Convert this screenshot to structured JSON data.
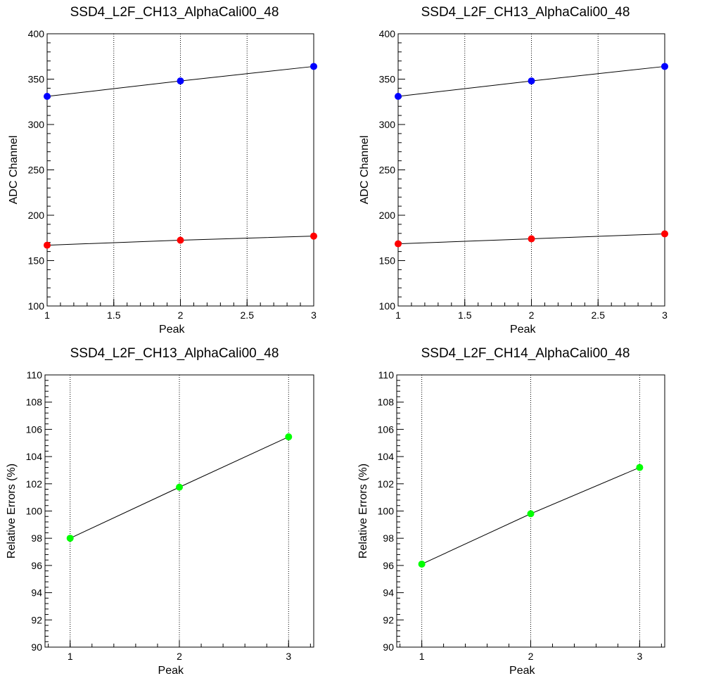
{
  "colors": {
    "series_blue": "#0000ff",
    "series_red": "#ff0000",
    "series_green": "#00ff00",
    "axis": "#000000",
    "grid": "#000000"
  },
  "chart_data": [
    {
      "type": "line",
      "title": "SSD4_L2F_CH13_AlphaCali00_48",
      "xlabel": "Peak",
      "ylabel": "ADC Channel",
      "xlim": [
        1,
        3
      ],
      "ylim": [
        100,
        400
      ],
      "xticks": [
        "1",
        "1.5",
        "2",
        "2.5",
        "3"
      ],
      "yticks": [
        "100",
        "150",
        "200",
        "250",
        "300",
        "350",
        "400"
      ],
      "grid_x": true,
      "series": [
        {
          "color": "#0000ff",
          "x": [
            1,
            2,
            3
          ],
          "y": [
            331,
            348,
            364
          ]
        },
        {
          "color": "#ff0000",
          "x": [
            1,
            2,
            3
          ],
          "y": [
            167,
            172.5,
            177
          ]
        }
      ]
    },
    {
      "type": "line",
      "title": "SSD4_L2F_CH13_AlphaCali00_48",
      "xlabel": "Peak",
      "ylabel": "ADC Channel",
      "xlim": [
        1,
        3
      ],
      "ylim": [
        100,
        400
      ],
      "xticks": [
        "1",
        "1.5",
        "2",
        "2.5",
        "3"
      ],
      "yticks": [
        "100",
        "150",
        "200",
        "250",
        "300",
        "350",
        "400"
      ],
      "grid_x": true,
      "series": [
        {
          "color": "#0000ff",
          "x": [
            1,
            2,
            3
          ],
          "y": [
            331,
            348,
            364
          ]
        },
        {
          "color": "#ff0000",
          "x": [
            1,
            2,
            3
          ],
          "y": [
            168.5,
            174,
            179.5
          ]
        }
      ]
    },
    {
      "type": "line",
      "title": "SSD4_L2F_CH13_AlphaCali00_48",
      "xlabel": "Peak",
      "ylabel": "Relative Errors (%)",
      "xlim": [
        0.77,
        3.23
      ],
      "ylim": [
        90,
        110
      ],
      "xticks": [
        "1",
        "2",
        "3"
      ],
      "yticks": [
        "90",
        "92",
        "94",
        "96",
        "98",
        "100",
        "102",
        "104",
        "106",
        "108",
        "110"
      ],
      "grid_x": true,
      "series": [
        {
          "color": "#00ff00",
          "x": [
            1,
            2,
            3
          ],
          "y": [
            98.0,
            101.75,
            105.45
          ]
        }
      ]
    },
    {
      "type": "line",
      "title": "SSD4_L2F_CH14_AlphaCali00_48",
      "xlabel": "Peak",
      "ylabel": "Relative Errors (%)",
      "xlim": [
        0.77,
        3.23
      ],
      "ylim": [
        90,
        110
      ],
      "xticks": [
        "1",
        "2",
        "3"
      ],
      "yticks": [
        "90",
        "92",
        "94",
        "96",
        "98",
        "100",
        "102",
        "104",
        "106",
        "108",
        "110"
      ],
      "grid_x": true,
      "series": [
        {
          "color": "#00ff00",
          "x": [
            1,
            2,
            3
          ],
          "y": [
            96.1,
            99.8,
            103.2
          ]
        }
      ]
    }
  ]
}
